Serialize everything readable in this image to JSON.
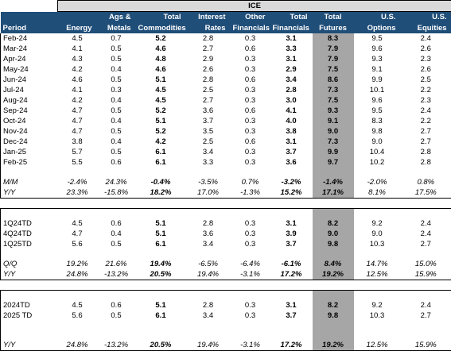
{
  "header": {
    "group": "ICE",
    "cols": [
      [
        "",
        "Period"
      ],
      [
        "",
        "Energy"
      ],
      [
        "Ags &",
        "Metals"
      ],
      [
        "Total",
        "Commodities"
      ],
      [
        "Interest",
        "Rates"
      ],
      [
        "Other",
        "Financials"
      ],
      [
        "Total",
        "Financials"
      ],
      [
        "Total",
        "Futures"
      ],
      [
        "U.S.",
        "Options"
      ],
      [
        "U.S.",
        "Equities"
      ]
    ]
  },
  "monthly": [
    [
      "Feb-24",
      "4.5",
      "0.7",
      "5.2",
      "2.8",
      "0.3",
      "3.1",
      "8.3",
      "9.5",
      "2.4"
    ],
    [
      "Mar-24",
      "4.1",
      "0.5",
      "4.6",
      "2.7",
      "0.6",
      "3.3",
      "7.9",
      "9.6",
      "2.6"
    ],
    [
      "Apr-24",
      "4.3",
      "0.5",
      "4.8",
      "2.9",
      "0.3",
      "3.1",
      "7.9",
      "9.3",
      "2.3"
    ],
    [
      "May-24",
      "4.2",
      "0.4",
      "4.6",
      "2.6",
      "0.3",
      "2.9",
      "7.5",
      "9.1",
      "2.6"
    ],
    [
      "Jun-24",
      "4.6",
      "0.5",
      "5.1",
      "2.8",
      "0.6",
      "3.4",
      "8.6",
      "9.9",
      "2.5"
    ],
    [
      "Jul-24",
      "4.1",
      "0.3",
      "4.5",
      "2.5",
      "0.3",
      "2.8",
      "7.3",
      "10.1",
      "2.2"
    ],
    [
      "Aug-24",
      "4.2",
      "0.4",
      "4.5",
      "2.7",
      "0.3",
      "3.0",
      "7.5",
      "9.6",
      "2.3"
    ],
    [
      "Sep-24",
      "4.7",
      "0.5",
      "5.2",
      "3.6",
      "0.6",
      "4.1",
      "9.3",
      "9.5",
      "2.4"
    ],
    [
      "Oct-24",
      "4.7",
      "0.4",
      "5.1",
      "3.7",
      "0.3",
      "4.0",
      "9.1",
      "8.3",
      "2.2"
    ],
    [
      "Nov-24",
      "4.7",
      "0.5",
      "5.2",
      "3.5",
      "0.3",
      "3.8",
      "9.0",
      "9.8",
      "2.7"
    ],
    [
      "Dec-24",
      "3.8",
      "0.4",
      "4.2",
      "2.5",
      "0.6",
      "3.1",
      "7.3",
      "9.0",
      "2.7"
    ],
    [
      "Jan-25",
      "5.7",
      "0.5",
      "6.1",
      "3.4",
      "0.3",
      "3.7",
      "9.9",
      "10.4",
      "2.8"
    ],
    [
      "Feb-25",
      "5.5",
      "0.6",
      "6.1",
      "3.3",
      "0.3",
      "3.6",
      "9.7",
      "10.2",
      "2.8"
    ]
  ],
  "monthly_changes": [
    [
      "M/M",
      "-2.4%",
      "24.3%",
      "-0.4%",
      "-3.5%",
      "0.7%",
      "-3.2%",
      "-1.4%",
      "-2.0%",
      "0.8%"
    ],
    [
      "Y/Y",
      "23.3%",
      "-15.8%",
      "18.2%",
      "17.0%",
      "-1.3%",
      "15.2%",
      "17.1%",
      "8.1%",
      "17.5%"
    ]
  ],
  "quarterly": [
    [
      "1Q24TD",
      "4.5",
      "0.6",
      "5.1",
      "2.8",
      "0.3",
      "3.1",
      "8.2",
      "9.2",
      "2.4"
    ],
    [
      "4Q24TD",
      "4.7",
      "0.4",
      "5.1",
      "3.6",
      "0.3",
      "3.9",
      "9.0",
      "9.0",
      "2.4"
    ],
    [
      "1Q25TD",
      "5.6",
      "0.5",
      "6.1",
      "3.4",
      "0.3",
      "3.7",
      "9.8",
      "10.3",
      "2.7"
    ]
  ],
  "quarterly_changes": [
    [
      "Q/Q",
      "19.2%",
      "21.6%",
      "19.4%",
      "-6.5%",
      "-6.4%",
      "-6.1%",
      "8.4%",
      "14.7%",
      "15.0%"
    ],
    [
      "Y/Y",
      "24.8%",
      "-13.2%",
      "20.5%",
      "19.4%",
      "-3.1%",
      "17.2%",
      "19.2%",
      "12.5%",
      "15.9%"
    ]
  ],
  "ytd": [
    [
      "2024TD",
      "4.5",
      "0.6",
      "5.1",
      "2.8",
      "0.3",
      "3.1",
      "8.2",
      "9.2",
      "2.4"
    ],
    [
      "2025 TD",
      "5.6",
      "0.5",
      "6.1",
      "3.4",
      "0.3",
      "3.7",
      "9.8",
      "10.3",
      "2.7"
    ]
  ],
  "ytd_changes": [
    [
      "Y/Y",
      "24.8%",
      "-13.2%",
      "20.5%",
      "19.4%",
      "-3.1%",
      "17.2%",
      "19.2%",
      "12.5%",
      "15.9%"
    ]
  ],
  "colors": {
    "header_bg": "#1f4e79",
    "ice_band": "#d9d9d9",
    "total_futures_shade": "#a6a6a6"
  }
}
